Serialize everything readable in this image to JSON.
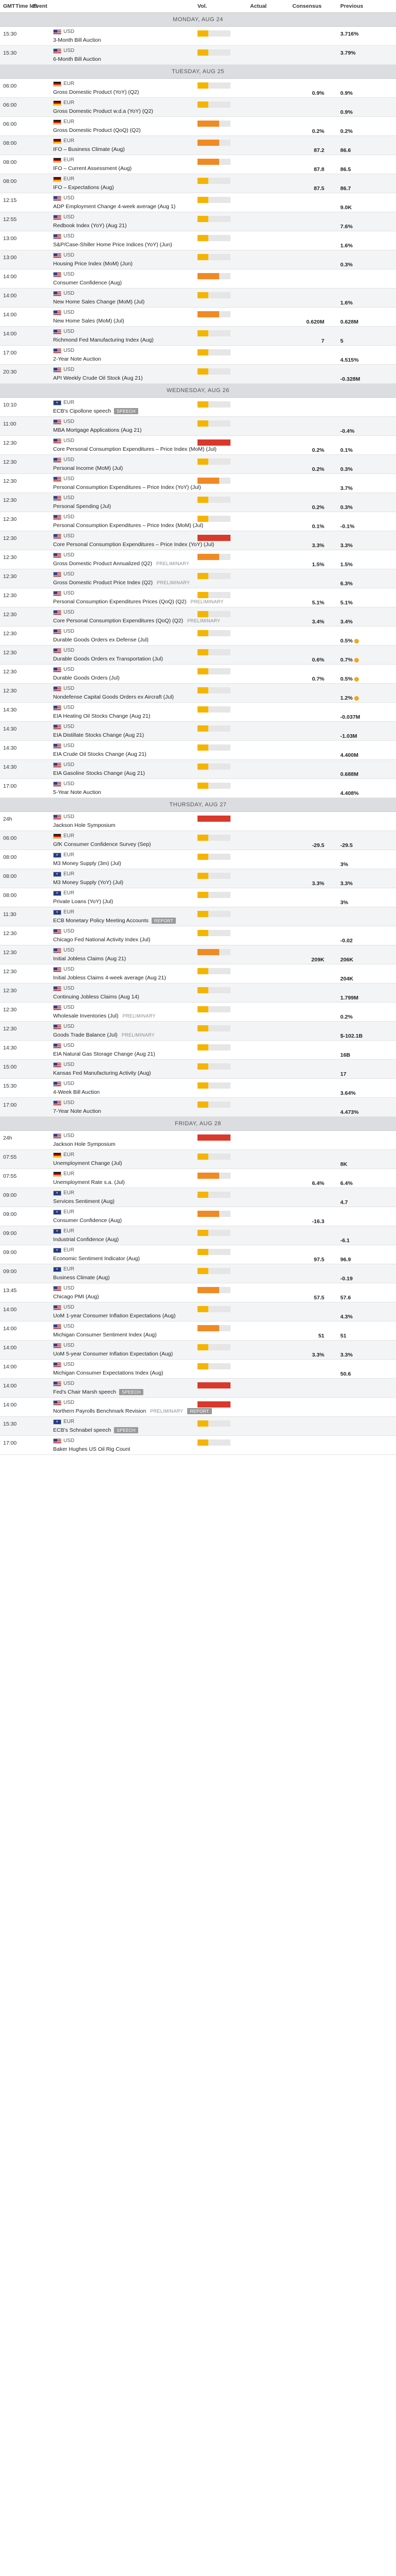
{
  "header": {
    "gmt": "GMT",
    "time_left": "Time left",
    "event": "Event",
    "vol": "Vol.",
    "actual": "Actual",
    "consensus": "Consensus",
    "previous": "Previous"
  },
  "days": [
    {
      "label": "MONDAY, AUG 24",
      "rows": [
        {
          "time": "15:30",
          "flag": "us",
          "cur": "USD",
          "event": "3-Month Bill Auction",
          "vol": "low",
          "prev": "3.716%",
          "prev_up": true
        },
        {
          "time": "15:30",
          "flag": "us",
          "cur": "USD",
          "event": "6-Month Bill Auction",
          "vol": "low",
          "prev": "3.79%",
          "prev_up": true
        }
      ]
    },
    {
      "label": "TUESDAY, AUG 25",
      "rows": [
        {
          "time": "06:00",
          "flag": "de",
          "cur": "EUR",
          "event": "Gross Domestic Product (YoY) (Q2)",
          "vol": "low",
          "cons": "0.9%",
          "prev": "0.9%"
        },
        {
          "time": "06:00",
          "flag": "de",
          "cur": "EUR",
          "event": "Gross Domestic Product w.d.a (YoY) (Q2)",
          "vol": "low",
          "prev": "0.9%"
        },
        {
          "time": "06:00",
          "flag": "de",
          "cur": "EUR",
          "event": "Gross Domestic Product (QoQ) (Q2)",
          "vol": "med",
          "cons": "0.2%",
          "prev": "0.2%"
        },
        {
          "time": "08:00",
          "flag": "de",
          "cur": "EUR",
          "event": "IFO – Business Climate (Aug)",
          "vol": "med",
          "cons": "87.2",
          "prev": "86.6"
        },
        {
          "time": "08:00",
          "flag": "de",
          "cur": "EUR",
          "event": "IFO – Current Assessment (Aug)",
          "vol": "med",
          "cons": "87.8",
          "prev": "86.5"
        },
        {
          "time": "08:00",
          "flag": "de",
          "cur": "EUR",
          "event": "IFO – Expectations (Aug)",
          "vol": "low",
          "cons": "87.5",
          "prev": "86.7"
        },
        {
          "time": "12:15",
          "flag": "us",
          "cur": "USD",
          "event": "ADP Employment Change 4-week average (Aug 1)",
          "vol": "low",
          "prev": "9.0K"
        },
        {
          "time": "12:55",
          "flag": "us",
          "cur": "USD",
          "event": "Redbook Index (YoY) (Aug 21)",
          "vol": "low",
          "prev": "7.6%"
        },
        {
          "time": "13:00",
          "flag": "us",
          "cur": "USD",
          "event": "S&P/Case-Shiller Home Price Indices (YoY) (Jun)",
          "vol": "low",
          "prev": "1.6%"
        },
        {
          "time": "13:00",
          "flag": "us",
          "cur": "USD",
          "event": "Housing Price Index (MoM) (Jun)",
          "vol": "low",
          "prev": "0.3%"
        },
        {
          "time": "14:00",
          "flag": "us",
          "cur": "USD",
          "event": "Consumer Confidence (Aug)",
          "vol": "med",
          "prev": ""
        },
        {
          "time": "14:00",
          "flag": "us",
          "cur": "USD",
          "event": "New Home Sales Change (MoM) (Jul)",
          "vol": "low",
          "prev": "1.6%"
        },
        {
          "time": "14:00",
          "flag": "us",
          "cur": "USD",
          "event": "New Home Sales (MoM) (Jul)",
          "vol": "med",
          "cons": "0.620M",
          "prev": "0.628M"
        },
        {
          "time": "14:00",
          "flag": "us",
          "cur": "USD",
          "event": "Richmond Fed Manufacturing Index (Aug)",
          "vol": "low",
          "cons": "7",
          "prev": "5"
        },
        {
          "time": "17:00",
          "flag": "us",
          "cur": "USD",
          "event": "2-Year Note Auction",
          "vol": "low",
          "prev": "4.515%"
        },
        {
          "time": "20:30",
          "flag": "us",
          "cur": "USD",
          "event": "API Weekly Crude Oil Stock (Aug 21)",
          "vol": "low",
          "prev": "-0.328M"
        }
      ]
    },
    {
      "label": "WEDNESDAY, AUG 26",
      "rows": [
        {
          "time": "10:10",
          "flag": "eu",
          "cur": "EUR",
          "event": "ECB's Cipollone speech",
          "tag": "SPEECH",
          "tagc": "speech",
          "vol": "low",
          "prev": ""
        },
        {
          "time": "11:00",
          "flag": "us",
          "cur": "USD",
          "event": "MBA Mortgage Applications (Aug 21)",
          "vol": "low",
          "prev": "-0.4%"
        },
        {
          "time": "12:30",
          "flag": "us",
          "cur": "USD",
          "event": "Core Personal Consumption Expenditures – Price Index (MoM) (Jul)",
          "vol": "high",
          "cons": "0.2%",
          "prev": "0.1%"
        },
        {
          "time": "12:30",
          "flag": "us",
          "cur": "USD",
          "event": "Personal Income (MoM) (Jul)",
          "vol": "low",
          "cons": "0.2%",
          "prev": "0.3%"
        },
        {
          "time": "12:30",
          "flag": "us",
          "cur": "USD",
          "event": "Personal Consumption Expenditures – Price Index (YoY) (Jul)",
          "vol": "med",
          "prev": "3.7%"
        },
        {
          "time": "12:30",
          "flag": "us",
          "cur": "USD",
          "event": "Personal Spending (Jul)",
          "vol": "low",
          "cons": "0.2%",
          "prev": "0.3%"
        },
        {
          "time": "12:30",
          "flag": "us",
          "cur": "USD",
          "event": "Personal Consumption Expenditures – Price Index (MoM) (Jul)",
          "vol": "low",
          "cons": "0.1%",
          "prev": "-0.1%"
        },
        {
          "time": "12:30",
          "flag": "us",
          "cur": "USD",
          "event": "Core Personal Consumption Expenditures – Price Index (YoY) (Jul)",
          "vol": "high",
          "cons": "3.3%",
          "prev": "3.3%"
        },
        {
          "time": "12:30",
          "flag": "us",
          "cur": "USD",
          "event": "Gross Domestic Product Annualized (Q2)",
          "tag": "PRELIMINARY",
          "tagc": "prelim",
          "vol": "med",
          "cons": "1.5%",
          "prev": "1.5%"
        },
        {
          "time": "12:30",
          "flag": "us",
          "cur": "USD",
          "event": "Gross Domestic Product Price Index (Q2)",
          "tag": "PRELIMINARY",
          "tagc": "prelim",
          "vol": "low",
          "prev": "6.3%"
        },
        {
          "time": "12:30",
          "flag": "us",
          "cur": "USD",
          "event": "Personal Consumption Expenditures Prices (QoQ) (Q2)",
          "tag": "PRELIMINARY",
          "tagc": "prelim",
          "vol": "low",
          "cons": "5.1%",
          "prev": "5.1%"
        },
        {
          "time": "12:30",
          "flag": "us",
          "cur": "USD",
          "event": "Core Personal Consumption Expenditures (QoQ) (Q2)",
          "tag": "PRELIMINARY",
          "tagc": "prelim",
          "vol": "low",
          "cons": "3.4%",
          "prev": "3.4%"
        },
        {
          "time": "12:30",
          "flag": "us",
          "cur": "USD",
          "event": "Durable Goods Orders ex Defense (Jul)",
          "vol": "low",
          "prev": "0.5%",
          "dot": true
        },
        {
          "time": "12:30",
          "flag": "us",
          "cur": "USD",
          "event": "Durable Goods Orders ex Transportation (Jul)",
          "vol": "low",
          "cons": "0.6%",
          "prev": "0.7%",
          "dot": true
        },
        {
          "time": "12:30",
          "flag": "us",
          "cur": "USD",
          "event": "Durable Goods Orders (Jul)",
          "vol": "low",
          "cons": "0.7%",
          "prev": "0.5%",
          "dot": true
        },
        {
          "time": "12:30",
          "flag": "us",
          "cur": "USD",
          "event": "Nondefense Capital Goods Orders ex Aircraft (Jul)",
          "vol": "low",
          "prev": "1.2%",
          "dot": true
        },
        {
          "time": "14:30",
          "flag": "us",
          "cur": "USD",
          "event": "EIA Heating Oil Stocks Change (Aug 21)",
          "vol": "low",
          "prev": "-0.037M"
        },
        {
          "time": "14:30",
          "flag": "us",
          "cur": "USD",
          "event": "EIA Distillate Stocks Change (Aug 21)",
          "vol": "low",
          "prev": "-1.03M"
        },
        {
          "time": "14:30",
          "flag": "us",
          "cur": "USD",
          "event": "EIA Crude Oil Stocks Change (Aug 21)",
          "vol": "low",
          "prev": "4.400M"
        },
        {
          "time": "14:30",
          "flag": "us",
          "cur": "USD",
          "event": "EIA Gasoline Stocks Change (Aug 21)",
          "vol": "low",
          "prev": "0.688M"
        },
        {
          "time": "17:00",
          "flag": "us",
          "cur": "USD",
          "event": "5-Year Note Auction",
          "vol": "low",
          "prev": "4.408%"
        }
      ]
    },
    {
      "label": "THURSDAY, AUG 27",
      "rows": [
        {
          "time": "24h",
          "flag": "us",
          "cur": "USD",
          "event": "Jackson Hole Symposium",
          "vol": "high",
          "prev": ""
        },
        {
          "time": "06:00",
          "flag": "de",
          "cur": "EUR",
          "event": "GfK Consumer Confidence Survey (Sep)",
          "vol": "low",
          "cons": "-29.5",
          "prev": "-29.5"
        },
        {
          "time": "08:00",
          "flag": "eu",
          "cur": "EUR",
          "event": "M3 Money Supply (3m) (Jul)",
          "vol": "low",
          "prev": "3%"
        },
        {
          "time": "08:00",
          "flag": "eu",
          "cur": "EUR",
          "event": "M3 Money Supply (YoY) (Jul)",
          "vol": "low",
          "cons": "3.3%",
          "prev": "3.3%"
        },
        {
          "time": "08:00",
          "flag": "eu",
          "cur": "EUR",
          "event": "Private Loans (YoY) (Jul)",
          "vol": "low",
          "prev": "3%"
        },
        {
          "time": "11:30",
          "flag": "eu",
          "cur": "EUR",
          "event": "ECB Monetary Policy Meeting Accounts",
          "tag": "REPORT",
          "tagc": "report",
          "vol": "low",
          "prev": ""
        },
        {
          "time": "12:30",
          "flag": "us",
          "cur": "USD",
          "event": "Chicago Fed National Activity Index (Jul)",
          "vol": "low",
          "prev": "-0.02"
        },
        {
          "time": "12:30",
          "flag": "us",
          "cur": "USD",
          "event": "Initial Jobless Claims (Aug 21)",
          "vol": "med",
          "cons": "209K",
          "prev": "206K"
        },
        {
          "time": "12:30",
          "flag": "us",
          "cur": "USD",
          "event": "Initial Jobless Claims 4-week average (Aug 21)",
          "vol": "low",
          "prev": "204K"
        },
        {
          "time": "12:30",
          "flag": "us",
          "cur": "USD",
          "event": "Continuing Jobless Claims (Aug 14)",
          "vol": "low",
          "prev": "1.799M"
        },
        {
          "time": "12:30",
          "flag": "us",
          "cur": "USD",
          "event": "Wholesale Inventories (Jul)",
          "tag": "PRELIMINARY",
          "tagc": "prelim",
          "vol": "low",
          "prev": "0.2%"
        },
        {
          "time": "12:30",
          "flag": "us",
          "cur": "USD",
          "event": "Goods Trade Balance (Jul)",
          "tag": "PRELIMINARY",
          "tagc": "prelim",
          "vol": "low",
          "prev": "$-102.1B"
        },
        {
          "time": "14:30",
          "flag": "us",
          "cur": "USD",
          "event": "EIA Natural Gas Storage Change (Aug 21)",
          "vol": "low",
          "prev": "16B"
        },
        {
          "time": "15:00",
          "flag": "us",
          "cur": "USD",
          "event": "Kansas Fed Manufacturing Activity (Aug)",
          "vol": "low",
          "prev": "17"
        },
        {
          "time": "15:30",
          "flag": "us",
          "cur": "USD",
          "event": "4-Week Bill Auction",
          "vol": "low",
          "prev": "3.64%"
        },
        {
          "time": "17:00",
          "flag": "us",
          "cur": "USD",
          "event": "7-Year Note Auction",
          "vol": "low",
          "prev": "4.473%"
        }
      ]
    },
    {
      "label": "FRIDAY, AUG 28",
      "rows": [
        {
          "time": "24h",
          "flag": "us",
          "cur": "USD",
          "event": "Jackson Hole Symposium",
          "vol": "high",
          "prev": ""
        },
        {
          "time": "07:55",
          "flag": "de",
          "cur": "EUR",
          "event": "Unemployment Change (Jul)",
          "vol": "low",
          "prev": "8K"
        },
        {
          "time": "07:55",
          "flag": "de",
          "cur": "EUR",
          "event": "Unemployment Rate s.a. (Jul)",
          "vol": "med",
          "cons": "6.4%",
          "prev": "6.4%"
        },
        {
          "time": "09:00",
          "flag": "eu",
          "cur": "EUR",
          "event": "Services Sentiment (Aug)",
          "vol": "low",
          "prev": "4.7"
        },
        {
          "time": "09:00",
          "flag": "eu",
          "cur": "EUR",
          "event": "Consumer Confidence (Aug)",
          "vol": "med",
          "cons": "-16.3",
          "prev": ""
        },
        {
          "time": "09:00",
          "flag": "eu",
          "cur": "EUR",
          "event": "Industrial Confidence (Aug)",
          "vol": "low",
          "prev": "-6.1"
        },
        {
          "time": "09:00",
          "flag": "eu",
          "cur": "EUR",
          "event": "Economic Sentiment Indicator (Aug)",
          "vol": "low",
          "cons": "97.5",
          "prev": "96.9"
        },
        {
          "time": "09:00",
          "flag": "eu",
          "cur": "EUR",
          "event": "Business Climate (Aug)",
          "vol": "low",
          "prev": "-0.19"
        },
        {
          "time": "13:45",
          "flag": "us",
          "cur": "USD",
          "event": "Chicago PMI (Aug)",
          "vol": "med",
          "cons": "57.5",
          "prev": "57.6"
        },
        {
          "time": "14:00",
          "flag": "us",
          "cur": "USD",
          "event": "UoM 1-year Consumer Inflation Expectations (Aug)",
          "vol": "low",
          "prev": "4.3%"
        },
        {
          "time": "14:00",
          "flag": "us",
          "cur": "USD",
          "event": "Michigan Consumer Sentiment Index (Aug)",
          "vol": "med",
          "cons": "51",
          "prev": "51"
        },
        {
          "time": "14:00",
          "flag": "us",
          "cur": "USD",
          "event": "UoM 5-year Consumer Inflation Expectation (Aug)",
          "vol": "low",
          "cons": "3.3%",
          "prev": "3.3%"
        },
        {
          "time": "14:00",
          "flag": "us",
          "cur": "USD",
          "event": "Michigan Consumer Expectations Index (Aug)",
          "vol": "low",
          "prev": "50.6"
        },
        {
          "time": "14:00",
          "flag": "us",
          "cur": "USD",
          "event": "Fed's Chair Marsh speech",
          "tag": "SPEECH",
          "tagc": "speech",
          "vol": "high",
          "prev": ""
        },
        {
          "time": "14:00",
          "flag": "us",
          "cur": "USD",
          "event": "Northern Payrolls Benchmark Revision",
          "tag": "PRELIMINARY",
          "tagc": "prelim",
          "tag2": "REPORT",
          "vol": "high",
          "prev": ""
        },
        {
          "time": "15:30",
          "flag": "eu",
          "cur": "EUR",
          "event": "ECB's Schnabel speech",
          "tag": "SPEECH",
          "tagc": "speech",
          "vol": "low",
          "prev": ""
        },
        {
          "time": "17:00",
          "flag": "us",
          "cur": "USD",
          "event": "Baker Hughes US Oil Rig Count",
          "vol": "low",
          "prev": ""
        }
      ]
    }
  ]
}
